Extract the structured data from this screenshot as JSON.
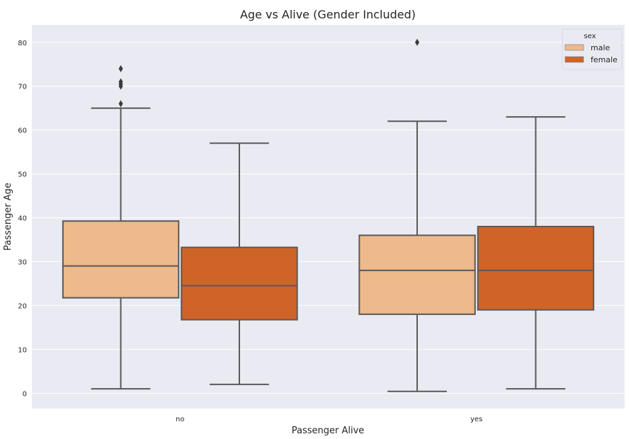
{
  "chart_data": {
    "type": "box",
    "title": "Age vs Alive (Gender Included)",
    "xlabel": "Passenger Alive",
    "ylabel": "Passenger Age",
    "categories": [
      "no",
      "yes"
    ],
    "ylim": [
      -3.5,
      84
    ],
    "yticks": [
      0,
      10,
      20,
      30,
      40,
      50,
      60,
      70,
      80
    ],
    "grid": true,
    "legend": {
      "title": "sex",
      "placement": "top-right"
    },
    "series": [
      {
        "name": "male",
        "color": "#EEB98B",
        "boxes": [
          {
            "whislo": 1,
            "q1": 21.75,
            "med": 29,
            "q3": 39.25,
            "whishi": 65,
            "fliers": [
              66,
              70,
              70.5,
              71,
              74
            ]
          },
          {
            "whislo": 0.42,
            "q1": 18,
            "med": 28,
            "q3": 36,
            "whishi": 62,
            "fliers": [
              80
            ]
          }
        ]
      },
      {
        "name": "female",
        "color": "#CF6428",
        "boxes": [
          {
            "whislo": 2,
            "q1": 16.75,
            "med": 24.5,
            "q3": 33.25,
            "whishi": 57,
            "fliers": []
          },
          {
            "whislo": 1,
            "q1": 19,
            "med": 28,
            "q3": 38,
            "whishi": 63,
            "fliers": []
          }
        ]
      }
    ]
  },
  "colors": {
    "background": "#EAEAF2",
    "grid": "#FFFFFF",
    "line": "#595959"
  }
}
